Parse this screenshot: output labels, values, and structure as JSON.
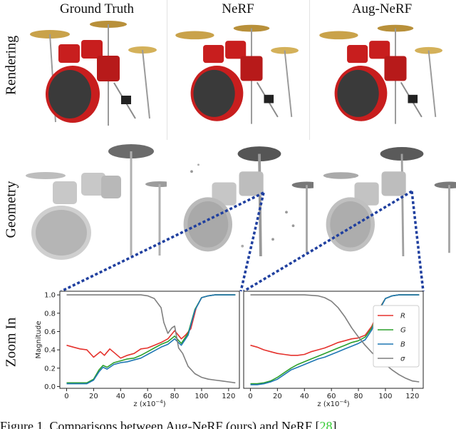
{
  "columns": [
    "Ground Truth",
    "NeRF",
    "Aug-NeRF"
  ],
  "rows": [
    "Rendering",
    "Geometry",
    "Zoom In"
  ],
  "caption": {
    "prefix": "Figure 1. Comparisons between Aug-NeRF (ours) and NeRF [",
    "ref": "28",
    "suffix": "]"
  },
  "colors": {
    "R": "#e5322d",
    "G": "#2ca02c",
    "B": "#1f77b4",
    "sigma": "#7f7f7f",
    "zoom_dots": "#1f3f9f",
    "drum_red": "#c81e1e"
  },
  "chart_data": [
    {
      "type": "line",
      "panel": "NeRF zoom",
      "xlabel": "z (x10^-4)",
      "ylabel": "Magnitude",
      "xlim": [
        -5,
        128
      ],
      "ylim": [
        -0.02,
        1.04
      ],
      "xticks": [
        0,
        20,
        40,
        60,
        80,
        100,
        120
      ],
      "yticks": [
        0.0,
        0.2,
        0.4,
        0.6,
        0.8,
        1.0
      ],
      "series": [
        {
          "name": "R",
          "color": "#e5322d",
          "x": [
            0,
            5,
            10,
            15,
            20,
            25,
            28,
            32,
            36,
            40,
            45,
            50,
            55,
            60,
            65,
            70,
            75,
            80,
            85,
            88,
            92,
            96,
            100,
            105,
            110,
            115,
            120,
            125
          ],
          "y": [
            0.45,
            0.43,
            0.41,
            0.4,
            0.32,
            0.38,
            0.34,
            0.41,
            0.36,
            0.31,
            0.34,
            0.36,
            0.41,
            0.42,
            0.45,
            0.48,
            0.52,
            0.61,
            0.52,
            0.56,
            0.63,
            0.86,
            0.97,
            0.99,
            1.0,
            1.0,
            1.0,
            1.0
          ]
        },
        {
          "name": "G",
          "color": "#2ca02c",
          "x": [
            0,
            5,
            10,
            15,
            20,
            24,
            27,
            30,
            35,
            40,
            45,
            50,
            55,
            60,
            65,
            70,
            75,
            80,
            85,
            90,
            95,
            100,
            105,
            110,
            115,
            120,
            125
          ],
          "y": [
            0.04,
            0.04,
            0.04,
            0.04,
            0.08,
            0.18,
            0.23,
            0.21,
            0.26,
            0.28,
            0.3,
            0.31,
            0.34,
            0.38,
            0.42,
            0.46,
            0.49,
            0.55,
            0.47,
            0.58,
            0.84,
            0.97,
            0.99,
            1.0,
            1.0,
            1.0,
            1.0
          ]
        },
        {
          "name": "B",
          "color": "#1f77b4",
          "x": [
            0,
            5,
            10,
            15,
            20,
            24,
            27,
            30,
            35,
            40,
            45,
            50,
            55,
            60,
            65,
            70,
            75,
            80,
            85,
            90,
            95,
            100,
            105,
            110,
            115,
            120,
            125
          ],
          "y": [
            0.03,
            0.03,
            0.03,
            0.03,
            0.07,
            0.16,
            0.21,
            0.19,
            0.24,
            0.26,
            0.27,
            0.29,
            0.31,
            0.35,
            0.39,
            0.43,
            0.46,
            0.52,
            0.45,
            0.56,
            0.83,
            0.97,
            0.99,
            1.0,
            1.0,
            1.0,
            1.0
          ]
        },
        {
          "name": "σ",
          "color": "#7f7f7f",
          "x": [
            0,
            10,
            20,
            30,
            40,
            50,
            55,
            60,
            65,
            70,
            72,
            75,
            78,
            80,
            83,
            86,
            90,
            95,
            100,
            105,
            110,
            115,
            120,
            125
          ],
          "y": [
            1.0,
            1.0,
            1.0,
            1.0,
            1.0,
            1.0,
            1.0,
            0.99,
            0.96,
            0.86,
            0.7,
            0.58,
            0.64,
            0.66,
            0.42,
            0.36,
            0.22,
            0.14,
            0.1,
            0.08,
            0.07,
            0.06,
            0.05,
            0.04
          ]
        }
      ]
    },
    {
      "type": "line",
      "panel": "Aug-NeRF zoom",
      "xlabel": "z (x10^-4)",
      "xlim": [
        -5,
        128
      ],
      "ylim": [
        -0.02,
        1.04
      ],
      "xticks": [
        0,
        20,
        40,
        60,
        80,
        100,
        120
      ],
      "yticks": [],
      "legend": "top-right",
      "series": [
        {
          "name": "R",
          "color": "#e5322d",
          "x": [
            0,
            5,
            10,
            15,
            20,
            25,
            30,
            35,
            40,
            45,
            50,
            55,
            60,
            65,
            70,
            75,
            80,
            85,
            90,
            95,
            100,
            105,
            110,
            115,
            120,
            125
          ],
          "y": [
            0.45,
            0.43,
            0.4,
            0.38,
            0.36,
            0.35,
            0.34,
            0.34,
            0.35,
            0.38,
            0.4,
            0.42,
            0.45,
            0.48,
            0.5,
            0.52,
            0.53,
            0.56,
            0.66,
            0.84,
            0.96,
            0.99,
            1.0,
            1.0,
            1.0,
            1.0
          ]
        },
        {
          "name": "G",
          "color": "#2ca02c",
          "x": [
            0,
            5,
            10,
            15,
            20,
            25,
            30,
            35,
            40,
            45,
            50,
            55,
            60,
            65,
            70,
            75,
            80,
            85,
            90,
            95,
            100,
            105,
            110,
            115,
            120,
            125
          ],
          "y": [
            0.03,
            0.03,
            0.04,
            0.06,
            0.1,
            0.15,
            0.2,
            0.24,
            0.27,
            0.3,
            0.33,
            0.36,
            0.39,
            0.42,
            0.45,
            0.48,
            0.5,
            0.54,
            0.64,
            0.83,
            0.96,
            0.99,
            1.0,
            1.0,
            1.0,
            1.0
          ]
        },
        {
          "name": "B",
          "color": "#1f77b4",
          "x": [
            0,
            5,
            10,
            15,
            20,
            25,
            30,
            35,
            40,
            45,
            50,
            55,
            60,
            65,
            70,
            75,
            80,
            85,
            90,
            95,
            100,
            105,
            110,
            115,
            120,
            125
          ],
          "y": [
            0.02,
            0.02,
            0.03,
            0.05,
            0.08,
            0.13,
            0.18,
            0.21,
            0.24,
            0.27,
            0.3,
            0.32,
            0.35,
            0.38,
            0.41,
            0.44,
            0.47,
            0.51,
            0.62,
            0.82,
            0.96,
            0.99,
            1.0,
            1.0,
            1.0,
            1.0
          ]
        },
        {
          "name": "σ",
          "color": "#7f7f7f",
          "x": [
            0,
            10,
            20,
            30,
            40,
            50,
            55,
            60,
            65,
            70,
            75,
            80,
            85,
            90,
            95,
            100,
            105,
            110,
            115,
            120,
            125
          ],
          "y": [
            1.0,
            1.0,
            1.0,
            1.0,
            1.0,
            0.99,
            0.97,
            0.93,
            0.86,
            0.76,
            0.64,
            0.54,
            0.45,
            0.37,
            0.3,
            0.24,
            0.18,
            0.13,
            0.09,
            0.06,
            0.05
          ]
        }
      ]
    }
  ]
}
